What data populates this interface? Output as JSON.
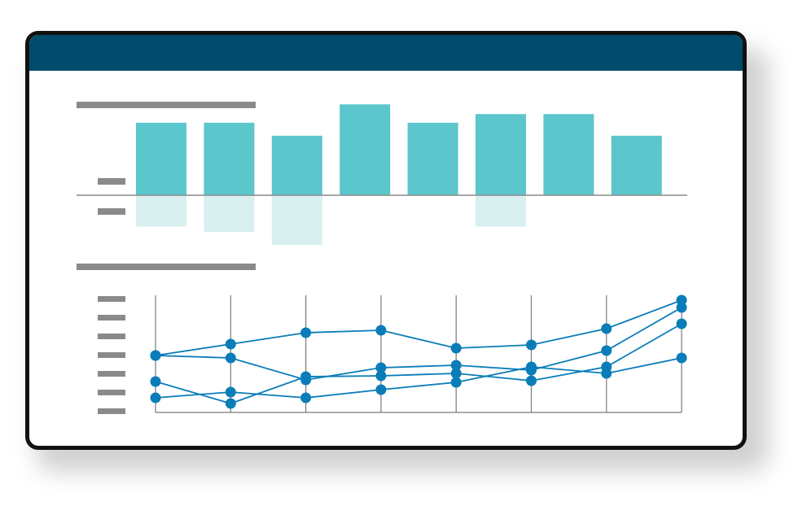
{
  "window": {
    "titlebar_color": "#014C6C",
    "frame_color": "#111111"
  },
  "chart_data": [
    {
      "type": "bar",
      "categories": [
        "",
        "",
        "",
        "",
        "",
        "",
        "",
        ""
      ],
      "series": [
        {
          "values": [
            67,
            67,
            55,
            84,
            67,
            75,
            75,
            55
          ]
        },
        {
          "values": [
            -29,
            -34,
            -46,
            0,
            0,
            -29,
            0,
            0
          ]
        }
      ],
      "ylim": [
        -55,
        95
      ],
      "grid": false,
      "colors": {
        "positive": "#5BC6CC",
        "negative": "#D9EFF0",
        "axis": "#8A8A8A",
        "placeholder": "#8A8A8A"
      }
    },
    {
      "type": "line",
      "x": [
        1,
        2,
        3,
        4,
        5,
        6,
        7,
        8
      ],
      "series": [
        {
          "values": [
            70,
            84,
            98,
            101,
            79,
            83,
            103,
            138
          ]
        },
        {
          "values": [
            70,
            67,
            40,
            55,
            58,
            52,
            76,
            129
          ]
        },
        {
          "values": [
            38,
            11,
            44,
            45,
            48,
            39,
            56,
            109
          ]
        },
        {
          "values": [
            18,
            25,
            18,
            28,
            37,
            56,
            48,
            67
          ]
        }
      ],
      "ylim": [
        0,
        140
      ],
      "grid": "vertical",
      "colors": {
        "line": "#0A7DB8",
        "grid": "#7A7A7A",
        "placeholder": "#8A8A8A"
      }
    }
  ]
}
